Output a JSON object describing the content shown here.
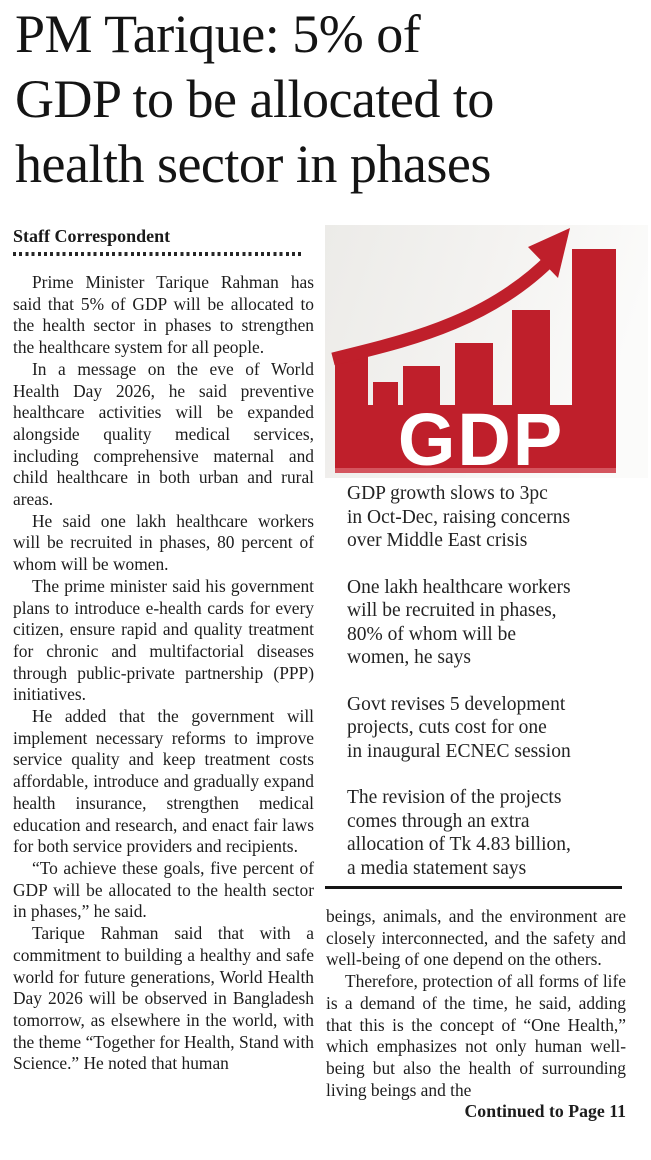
{
  "article": {
    "headline": "PM Tarique: 5% of\nGDP to be allocated to\nhealth sector in phases",
    "byline": "Staff Correspondent",
    "body_paragraphs": [
      "Prime Minister Tarique Rahman has said that 5% of GDP will be allocated to the health sector in phases to strengthen the healthcare system for all people.",
      "In a message on the eve of World Health Day 2026, he said preventive healthcare activities will be expanded alongside quality medical services, including comprehensive maternal and child healthcare in both urban and rural areas.",
      "He said one lakh healthcare workers will be recruited in phases, 80 percent of whom will be women.",
      "The prime minister said his government plans to introduce e-health cards for every citizen, ensure rapid and quality treatment for chronic and multifactorial diseases through public-private partnership (PPP) initiatives.",
      "He added that the government will implement necessary reforms to improve service quality and keep treatment costs affordable, introduce and gradually expand health insurance, strengthen medical education and research, and enact fair laws for both service providers and recipients.",
      "“To achieve these goals, five percent of GDP will be allocated to the health sector in phases,” he said.",
      "Tarique Rahman said that with a commitment to building a healthy and safe world for future generations, World Health Day 2026 will be observed in Bangladesh tomorrow, as elsewhere in the world, with the theme “Together for Health, Stand with Science.” He noted that human"
    ],
    "continuation_paragraphs": [
      "beings, animals, and the environment are closely interconnected, and the safety and well-being of one depend on the others.",
      "Therefore, protection of all forms of life is a demand of the time, he said, adding that this is the concept of “One Health,” which emphasizes not only human well-being but also the health of surrounding living beings and the"
    ],
    "continued_notice": "Continued to Page 11"
  },
  "photo": {
    "icon": "gdp-growth-bar-chart-with-rising-arrow",
    "logo_text": "GDP",
    "colors": {
      "red": "#bf1f2b",
      "background": "#f0efed",
      "label": "#ffffff"
    }
  },
  "highlights": [
    "GDP growth slows to 3pc\nin Oct-Dec, raising concerns\nover Middle East crisis",
    "One lakh healthcare workers\nwill be recruited in phases,\n80% of whom will be\nwomen, he says",
    "Govt revises 5 development\nprojects, cuts cost for one\nin inaugural ECNEC session",
    "The revision of the projects\ncomes through an extra\nallocation of Tk 4.83 billion,\na media statement says"
  ]
}
